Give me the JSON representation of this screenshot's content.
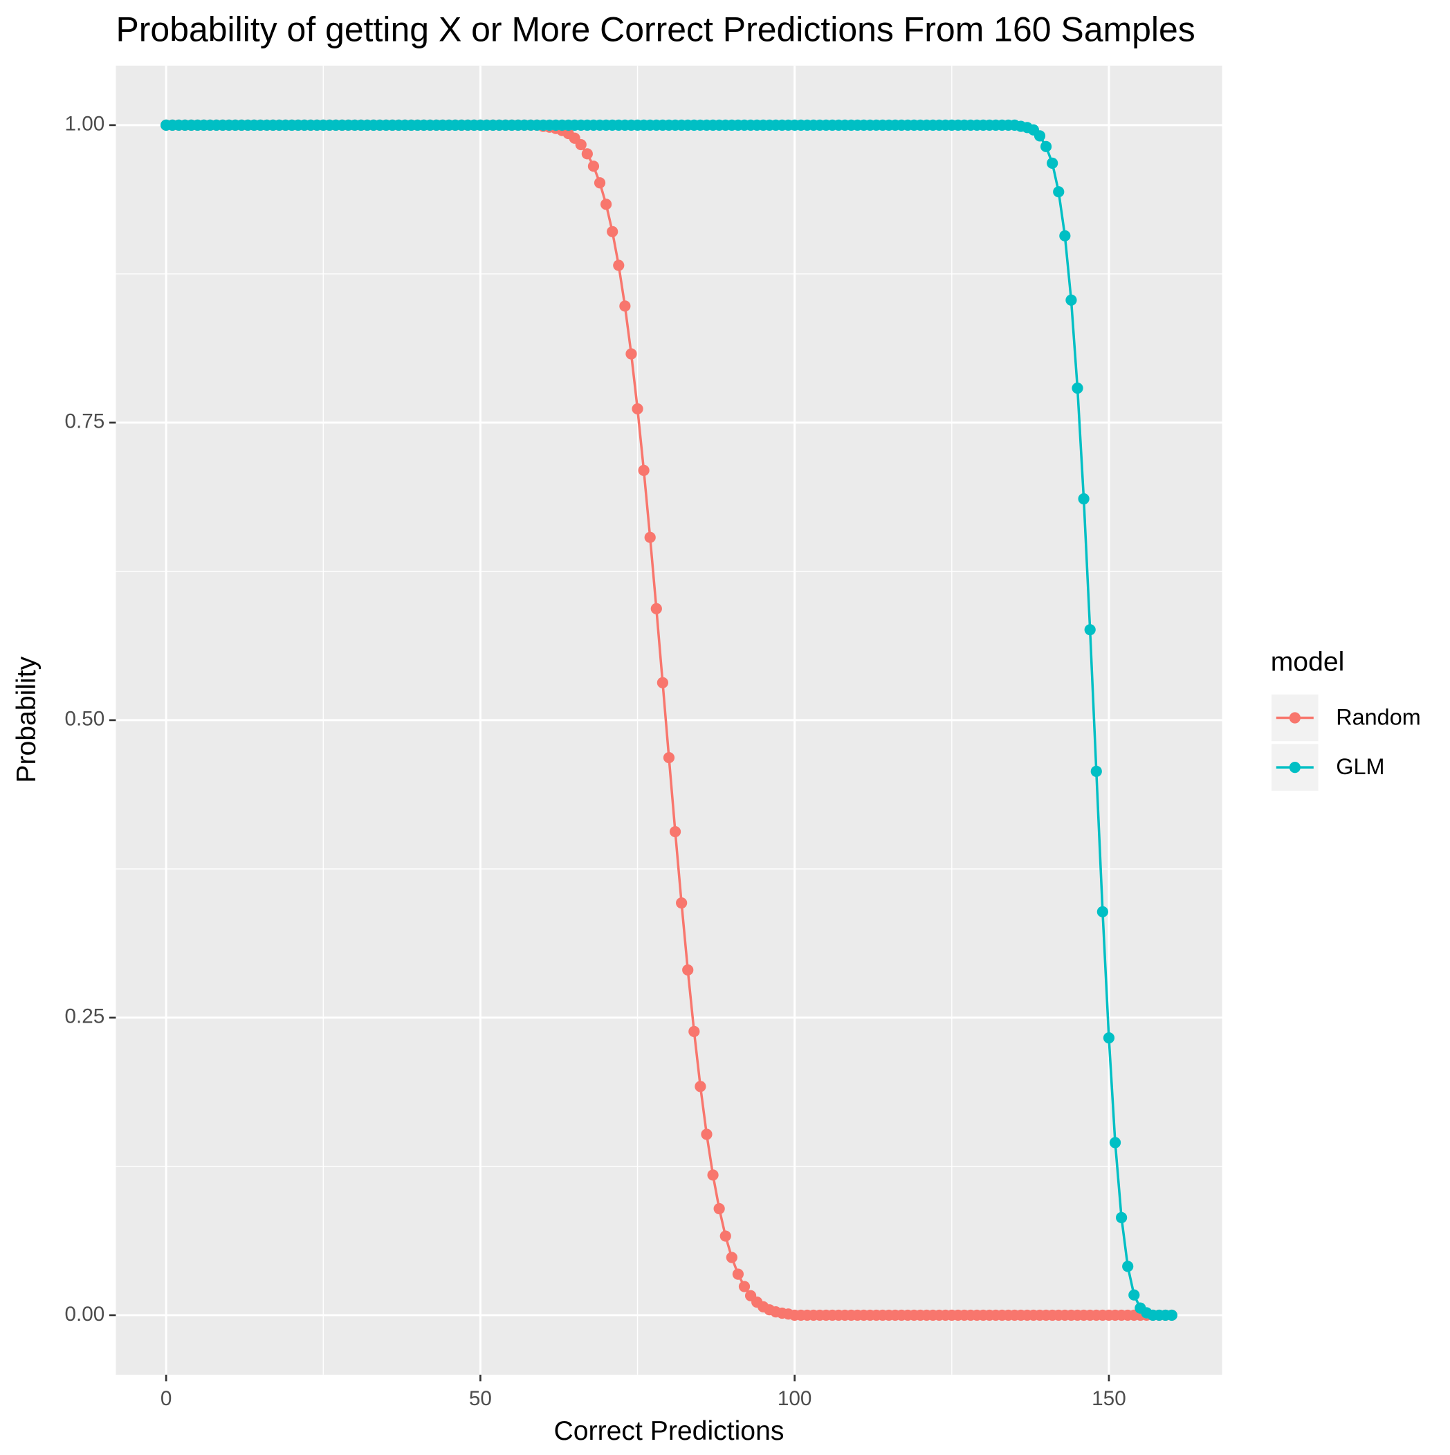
{
  "chart_data": {
    "type": "line",
    "title": "Probability of getting X or More Correct Predictions From 160 Samples",
    "x_label": "Correct Predictions",
    "y_label": "Probability",
    "legend_title": "model",
    "legend_position": "right",
    "grid": true,
    "xlim": [
      -8,
      168
    ],
    "ylim": [
      -0.05,
      1.05
    ],
    "xticks": [
      0,
      50,
      100,
      150
    ],
    "xminor": [
      25,
      75,
      125
    ],
    "yticks": [
      {
        "value": 0,
        "label": "0.00"
      },
      {
        "value": 0.25,
        "label": "0.25"
      },
      {
        "value": 0.5,
        "label": "0.50"
      },
      {
        "value": 0.75,
        "label": "0.75"
      },
      {
        "value": 1,
        "label": "1.00"
      }
    ],
    "yminor": [
      0.125,
      0.375,
      0.625,
      0.875
    ],
    "x": [
      0,
      1,
      2,
      3,
      4,
      5,
      6,
      7,
      8,
      9,
      10,
      11,
      12,
      13,
      14,
      15,
      16,
      17,
      18,
      19,
      20,
      21,
      22,
      23,
      24,
      25,
      26,
      27,
      28,
      29,
      30,
      31,
      32,
      33,
      34,
      35,
      36,
      37,
      38,
      39,
      40,
      41,
      42,
      43,
      44,
      45,
      46,
      47,
      48,
      49,
      50,
      51,
      52,
      53,
      54,
      55,
      56,
      57,
      58,
      59,
      60,
      61,
      62,
      63,
      64,
      65,
      66,
      67,
      68,
      69,
      70,
      71,
      72,
      73,
      74,
      75,
      76,
      77,
      78,
      79,
      80,
      81,
      82,
      83,
      84,
      85,
      86,
      87,
      88,
      89,
      90,
      91,
      92,
      93,
      94,
      95,
      96,
      97,
      98,
      99,
      100,
      101,
      102,
      103,
      104,
      105,
      106,
      107,
      108,
      109,
      110,
      111,
      112,
      113,
      114,
      115,
      116,
      117,
      118,
      119,
      120,
      121,
      122,
      123,
      124,
      125,
      126,
      127,
      128,
      129,
      130,
      131,
      132,
      133,
      134,
      135,
      136,
      137,
      138,
      139,
      140,
      141,
      142,
      143,
      144,
      145,
      146,
      147,
      148,
      149,
      150,
      151,
      152,
      153,
      154,
      155,
      156,
      157,
      158,
      159,
      160
    ],
    "series": [
      {
        "name": "Random",
        "color": "#f8766d",
        "values": [
          1,
          1,
          1,
          1,
          1,
          1,
          1,
          1,
          1,
          1,
          1,
          1,
          1,
          1,
          1,
          1,
          1,
          1,
          1,
          1,
          1,
          1,
          1,
          1,
          1,
          1,
          1,
          1,
          1,
          1,
          1,
          1,
          1,
          1,
          1,
          1,
          1,
          1,
          1,
          1,
          1,
          1,
          1,
          1,
          1,
          1,
          1,
          1,
          1,
          1,
          1,
          1,
          1,
          1,
          1,
          1,
          1,
          1,
          1,
          1,
          0.999,
          0.9983,
          0.9972,
          0.9955,
          0.9929,
          0.989,
          0.9836,
          0.9759,
          0.9655,
          0.9515,
          0.9335,
          0.9105,
          0.8822,
          0.848,
          0.8078,
          0.7616,
          0.7099,
          0.6536,
          0.5937,
          0.5315,
          0.4685,
          0.4063,
          0.3464,
          0.2901,
          0.2384,
          0.1922,
          0.152,
          0.1178,
          0.0895,
          0.0665,
          0.0485,
          0.0345,
          0.0241,
          0.0164,
          0.011,
          0.0071,
          0.0045,
          0.0028,
          0.0017,
          0.001,
          0,
          0,
          0,
          0,
          0,
          0,
          0,
          0,
          0,
          0,
          0,
          0,
          0,
          0,
          0,
          0,
          0,
          0,
          0,
          0,
          0,
          0,
          0,
          0,
          0,
          0,
          0,
          0,
          0,
          0,
          0,
          0,
          0,
          0,
          0,
          0,
          0,
          0,
          0,
          0,
          0,
          0,
          0,
          0,
          0,
          0,
          0,
          0,
          0,
          0,
          0,
          0,
          0,
          0,
          0,
          0,
          0,
          0,
          0,
          0,
          0
        ]
      },
      {
        "name": "GLM",
        "color": "#00bfc4",
        "values": [
          1,
          1,
          1,
          1,
          1,
          1,
          1,
          1,
          1,
          1,
          1,
          1,
          1,
          1,
          1,
          1,
          1,
          1,
          1,
          1,
          1,
          1,
          1,
          1,
          1,
          1,
          1,
          1,
          1,
          1,
          1,
          1,
          1,
          1,
          1,
          1,
          1,
          1,
          1,
          1,
          1,
          1,
          1,
          1,
          1,
          1,
          1,
          1,
          1,
          1,
          1,
          1,
          1,
          1,
          1,
          1,
          1,
          1,
          1,
          1,
          1,
          1,
          1,
          1,
          1,
          1,
          1,
          1,
          1,
          1,
          1,
          1,
          1,
          1,
          1,
          1,
          1,
          1,
          1,
          1,
          1,
          1,
          1,
          1,
          1,
          1,
          1,
          1,
          1,
          1,
          1,
          1,
          1,
          1,
          1,
          1,
          1,
          1,
          1,
          1,
          1,
          1,
          1,
          1,
          1,
          1,
          1,
          1,
          1,
          1,
          1,
          1,
          1,
          1,
          1,
          1,
          1,
          1,
          1,
          1,
          1,
          1,
          1,
          1,
          1,
          1,
          1,
          1,
          1,
          1,
          1,
          1,
          1,
          1,
          1,
          1,
          0.999,
          0.998,
          0.996,
          0.991,
          0.982,
          0.968,
          0.944,
          0.907,
          0.853,
          0.779,
          0.686,
          0.576,
          0.457,
          0.339,
          0.233,
          0.145,
          0.082,
          0.041,
          0.017,
          0.006,
          0.002,
          0,
          0,
          0,
          0
        ]
      }
    ]
  }
}
